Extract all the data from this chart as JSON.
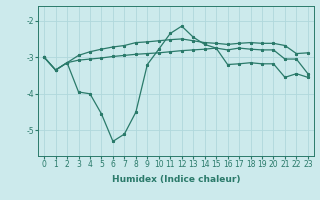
{
  "x": [
    0,
    1,
    2,
    3,
    4,
    5,
    6,
    7,
    8,
    9,
    10,
    11,
    12,
    13,
    14,
    15,
    16,
    17,
    18,
    19,
    20,
    21,
    22,
    23
  ],
  "line_top": [
    -3.0,
    -3.35,
    -3.15,
    -2.95,
    -2.85,
    -2.78,
    -2.72,
    -2.68,
    -2.6,
    -2.58,
    -2.55,
    -2.52,
    -2.5,
    -2.55,
    -2.6,
    -2.62,
    -2.65,
    -2.62,
    -2.6,
    -2.62,
    -2.62,
    -2.68,
    -2.9,
    -2.88
  ],
  "line_mid": [
    -3.0,
    -3.35,
    -3.15,
    -3.95,
    -4.0,
    -4.55,
    -5.3,
    -5.1,
    -4.5,
    -3.2,
    -2.78,
    -2.35,
    -2.15,
    -2.45,
    -2.65,
    -2.75,
    -2.8,
    -2.75,
    -2.78,
    -2.8,
    -2.8,
    -3.05,
    -3.05,
    -3.45
  ],
  "line_bot": [
    -3.0,
    -3.35,
    -3.15,
    -3.08,
    -3.05,
    -3.02,
    -2.98,
    -2.95,
    -2.92,
    -2.9,
    -2.88,
    -2.85,
    -2.82,
    -2.8,
    -2.78,
    -2.75,
    -3.2,
    -3.18,
    -3.15,
    -3.18,
    -3.18,
    -3.55,
    -3.45,
    -3.55
  ],
  "xlabel": "Humidex (Indice chaleur)",
  "ylim": [
    -5.7,
    -1.6
  ],
  "xlim": [
    -0.5,
    23.5
  ],
  "yticks": [
    -5,
    -4,
    -3,
    -2
  ],
  "xticks": [
    0,
    1,
    2,
    3,
    4,
    5,
    6,
    7,
    8,
    9,
    10,
    11,
    12,
    13,
    14,
    15,
    16,
    17,
    18,
    19,
    20,
    21,
    22,
    23
  ],
  "line_color": "#2a7a6a",
  "bg_color": "#cceaec",
  "grid_color": "#b0d8dc",
  "tick_fontsize": 5.5,
  "label_fontsize": 6.5
}
